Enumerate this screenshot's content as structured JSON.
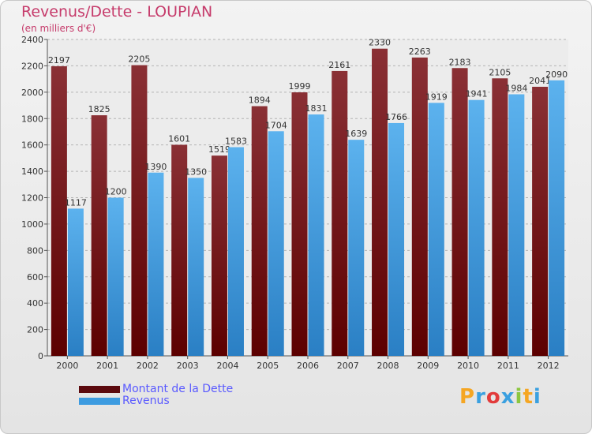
{
  "chart_data": {
    "type": "bar",
    "title": "Revenus/Dette - LOUPIAN",
    "subtitle": "(en milliers d'€)",
    "categories": [
      "2000",
      "2001",
      "2002",
      "2003",
      "2004",
      "2005",
      "2006",
      "2007",
      "2008",
      "2009",
      "2010",
      "2011",
      "2012"
    ],
    "series": [
      {
        "name": "Montant de la Dette",
        "color": "#7a1e22",
        "values": [
          2197,
          1825,
          2205,
          1601,
          1519,
          1894,
          1999,
          2161,
          2330,
          2263,
          2183,
          2105,
          2041
        ]
      },
      {
        "name": "Revenus",
        "color": "#3d9be0",
        "values": [
          1117,
          1200,
          1390,
          1350,
          1583,
          1704,
          1831,
          1639,
          1766,
          1919,
          1941,
          1984,
          2090
        ]
      }
    ],
    "ylim": [
      0,
      2400
    ],
    "yticks": [
      0,
      200,
      400,
      600,
      800,
      1000,
      1200,
      1400,
      1600,
      1800,
      2000,
      2200,
      2400
    ],
    "grid": true,
    "legend_placement": "bottom-left"
  },
  "logo": {
    "text": "Proxiti",
    "letters": [
      "P",
      "r",
      "o",
      "x",
      "i",
      "t",
      "i"
    ],
    "colors": [
      "#f5a623",
      "#3aa0e0",
      "#e23b3b",
      "#3aa0e0",
      "#8cc63f",
      "#f5a623",
      "#3aa0e0"
    ]
  }
}
